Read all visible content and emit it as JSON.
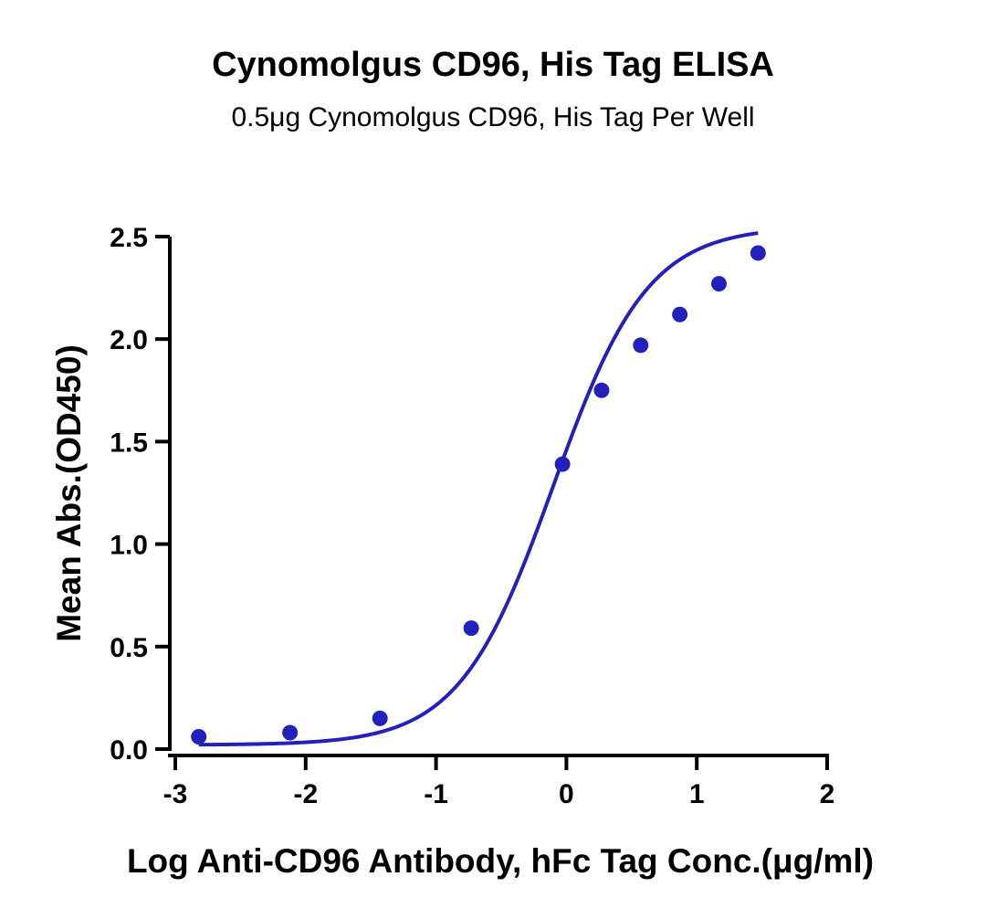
{
  "chart_data": {
    "type": "scatter",
    "title": "Cynomolgus CD96, His Tag ELISA",
    "subtitle": "0.5μg Cynomolgus CD96, His Tag Per Well",
    "xlabel": "Log Anti-CD96 Antibody, hFc Tag Conc.(μg/ml)",
    "ylabel": "Mean Abs.(OD450)",
    "xlim": [
      -3,
      2
    ],
    "ylim": [
      0,
      2.5
    ],
    "xticks": [
      "-3",
      "-2",
      "-1",
      "0",
      "1",
      "2"
    ],
    "yticks": [
      "0.0",
      "0.5",
      "1.0",
      "1.5",
      "2.0",
      "2.5"
    ],
    "grid": false,
    "color": "#2222bb",
    "series": [
      {
        "x": [
          -2.82,
          -2.12,
          -1.43,
          -0.73,
          -0.03,
          0.27,
          0.57,
          0.87,
          1.17,
          1.47
        ],
        "y": [
          0.06,
          0.08,
          0.15,
          0.59,
          1.39,
          1.75,
          1.97,
          2.12,
          2.27,
          2.42
        ],
        "fit": "sigmoid"
      }
    ]
  }
}
